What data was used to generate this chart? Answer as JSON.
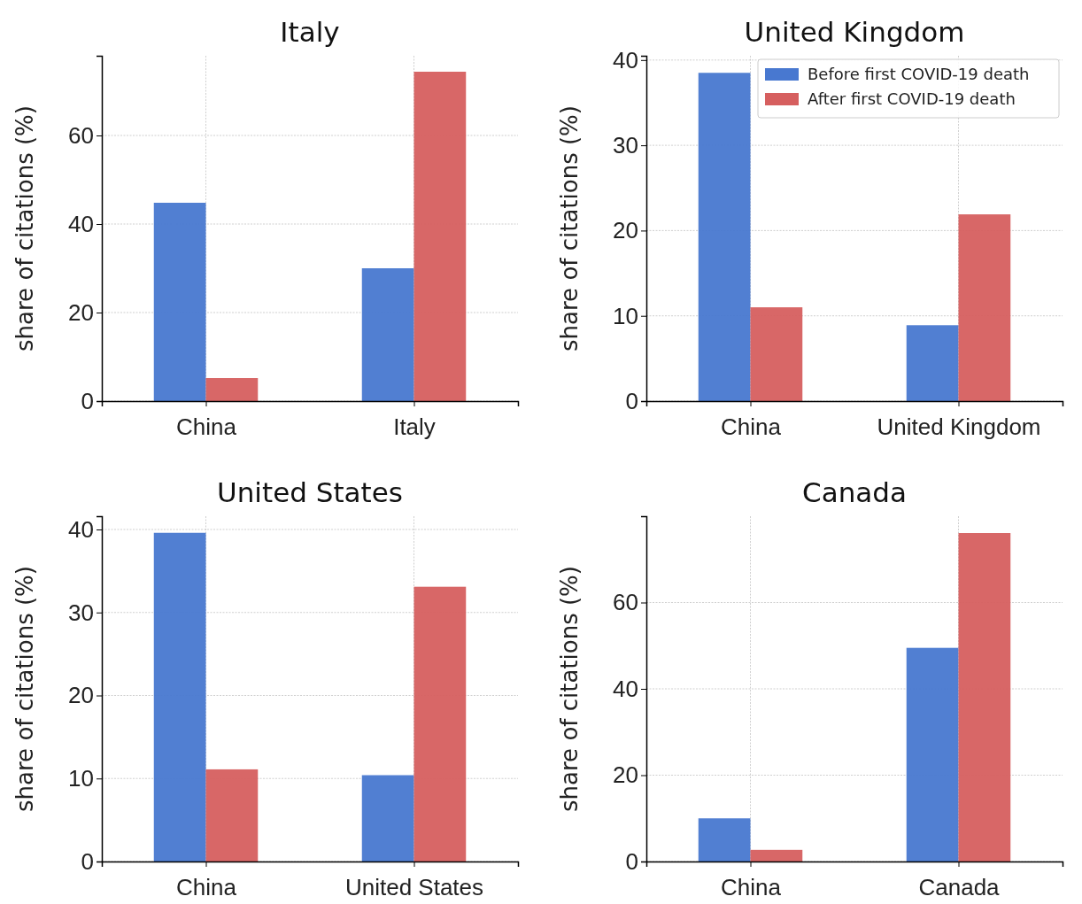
{
  "chart_data": [
    {
      "type": "bar",
      "title": "Italy",
      "ylabel": "share of citations (%)",
      "categories": [
        "China",
        "Italy"
      ],
      "series": [
        {
          "color": "#4878d0",
          "values": [
            44.8,
            30.0
          ]
        },
        {
          "color": "#d65f5f",
          "values": [
            5.2,
            74.4
          ]
        }
      ],
      "ylim": [
        0,
        78
      ],
      "yticks": [
        0,
        20,
        40,
        60
      ],
      "grid": true
    },
    {
      "type": "bar",
      "title": "United Kingdom",
      "ylabel": "share of citations (%)",
      "categories": [
        "China",
        "United Kingdom"
      ],
      "series": [
        {
          "name": "Before first COVID-19 death",
          "color": "#4878d0",
          "values": [
            38.5,
            8.9
          ]
        },
        {
          "name": "After first COVID-19 death",
          "color": "#d65f5f",
          "values": [
            11.0,
            21.9
          ]
        }
      ],
      "ylim": [
        0,
        40.5
      ],
      "yticks": [
        0,
        10,
        20,
        30,
        40
      ],
      "grid": true,
      "legend": "top right"
    },
    {
      "type": "bar",
      "title": "United States",
      "ylabel": "share of citations (%)",
      "categories": [
        "China",
        "United States"
      ],
      "series": [
        {
          "color": "#4878d0",
          "values": [
            39.6,
            10.4
          ]
        },
        {
          "color": "#d65f5f",
          "values": [
            11.1,
            33.1
          ]
        }
      ],
      "ylim": [
        0,
        41.6
      ],
      "yticks": [
        0,
        10,
        20,
        30,
        40
      ],
      "grid": true
    },
    {
      "type": "bar",
      "title": "Canada",
      "ylabel": "share of citations (%)",
      "categories": [
        "China",
        "Canada"
      ],
      "series": [
        {
          "color": "#4878d0",
          "values": [
            10.0,
            49.5
          ]
        },
        {
          "color": "#d65f5f",
          "values": [
            2.7,
            76.1
          ]
        }
      ],
      "ylim": [
        0,
        80
      ],
      "yticks": [
        0,
        20,
        40,
        60
      ],
      "grid": true
    }
  ]
}
